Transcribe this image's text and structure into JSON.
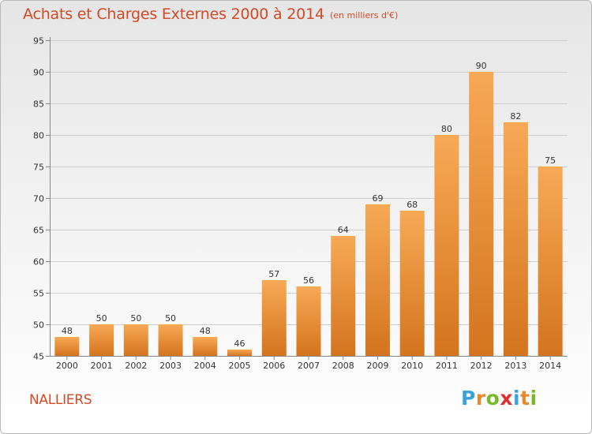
{
  "title": "Achats et Charges Externes 2000 à 2014",
  "subtitle": "(en milliers d'€)",
  "town": "NALLIERS",
  "brand": {
    "letters": [
      "P",
      "r",
      "o",
      "x",
      "i",
      "t",
      "i"
    ],
    "colors": [
      "#3aa3d8",
      "#e8892b",
      "#79b829",
      "#e02f2f",
      "#3aa3d8",
      "#e8892b",
      "#79b829"
    ]
  },
  "colors": {
    "bar_top": "#f7a955",
    "bar_bottom": "#d4741f",
    "title": "#d24a26"
  },
  "chart_data": {
    "type": "bar",
    "categories": [
      "2000",
      "2001",
      "2002",
      "2003",
      "2004",
      "2005",
      "2006",
      "2007",
      "2008",
      "2009",
      "2010",
      "2011",
      "2012",
      "2013",
      "2014"
    ],
    "values": [
      48,
      50,
      50,
      50,
      48,
      46,
      57,
      56,
      64,
      69,
      68,
      80,
      90,
      82,
      75
    ],
    "ylim": [
      45,
      95
    ],
    "yticks": [
      45,
      50,
      55,
      60,
      65,
      70,
      75,
      80,
      85,
      90,
      95
    ],
    "grid": true
  }
}
